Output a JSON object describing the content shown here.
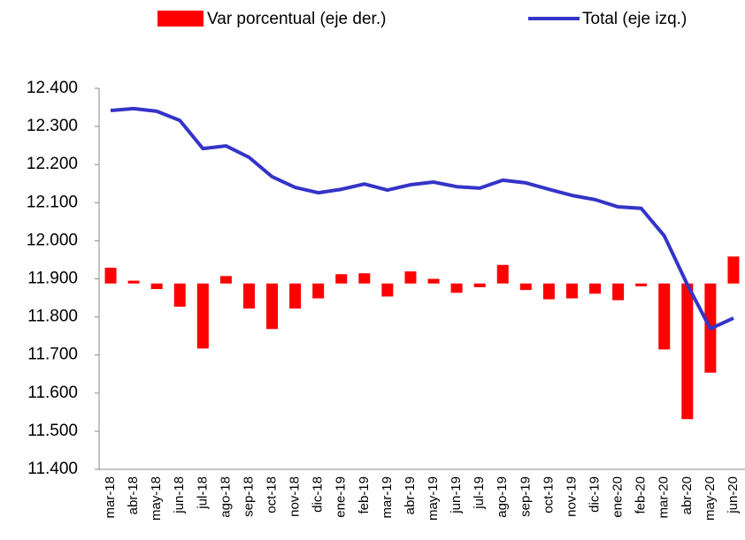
{
  "chart_data": {
    "type": "bar_line",
    "categories": [
      "mar-18",
      "abr-18",
      "may-18",
      "jun-18",
      "jul-18",
      "ago-18",
      "sep-18",
      "oct-18",
      "nov-18",
      "dic-18",
      "ene-19",
      "feb-19",
      "mar-19",
      "abr-19",
      "may-19",
      "jun-19",
      "jul-19",
      "ago-19",
      "sep-19",
      "oct-19",
      "nov-19",
      "dic-19",
      "ene-20",
      "feb-20",
      "mar-20",
      "abr-20",
      "may-20",
      "jun-20"
    ],
    "series": [
      {
        "name": "Var porcentual (eje der.)",
        "type": "bar",
        "axis": "y2",
        "color": "#ff0000",
        "values": [
          0.17,
          0.03,
          -0.06,
          -0.25,
          -0.7,
          0.08,
          -0.27,
          -0.49,
          -0.27,
          -0.16,
          0.1,
          0.11,
          -0.14,
          0.13,
          0.05,
          -0.1,
          -0.04,
          0.2,
          -0.07,
          -0.17,
          -0.16,
          -0.11,
          -0.18,
          -0.03,
          -0.71,
          -1.46,
          -0.96,
          0.29
        ]
      },
      {
        "name": "Total (eje izq.)",
        "type": "line",
        "axis": "y",
        "color": "#3434c8",
        "values": [
          12342,
          12347,
          12340,
          12316,
          12242,
          12249,
          12219,
          12168,
          12140,
          12126,
          12135,
          12149,
          12133,
          12147,
          12154,
          12142,
          12138,
          12159,
          12152,
          12135,
          12119,
          12108,
          12089,
          12085,
          12013,
          11885,
          11769,
          11797
        ]
      }
    ],
    "ylim": [
      11400,
      12400
    ],
    "yticks": [
      {
        "value": 11400,
        "label": "11.400"
      },
      {
        "value": 11500,
        "label": "11.500"
      },
      {
        "value": 11600,
        "label": "11.600"
      },
      {
        "value": 11700,
        "label": "11.700"
      },
      {
        "value": 11800,
        "label": "11.800"
      },
      {
        "value": 11900,
        "label": "11.900"
      },
      {
        "value": 12000,
        "label": "12.000"
      },
      {
        "value": 12100,
        "label": "12.100"
      },
      {
        "value": 12200,
        "label": "12.200"
      },
      {
        "value": 12300,
        "label": "12.300"
      },
      {
        "value": 12400,
        "label": "12.400"
      }
    ],
    "y2lim": [
      -2.0,
      2.1
    ],
    "legend": "top"
  }
}
